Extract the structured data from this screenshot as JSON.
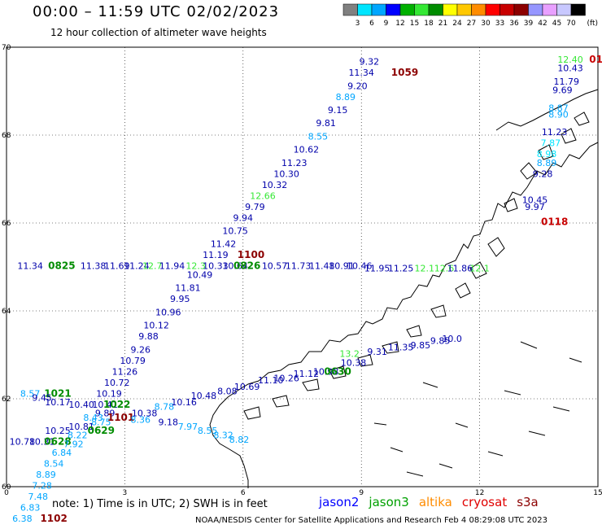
{
  "title": "00:00 – 11:59 UTC 02/02/2023",
  "subtitle": "12 hour collection of altimeter wave heights",
  "legend": {
    "colors": [
      "#808080",
      "#00e5ff",
      "#00a6ff",
      "#0000ff",
      "#00b000",
      "#34e834",
      "#008c00",
      "#ffff00",
      "#ffc800",
      "#ff8c00",
      "#ff0000",
      "#c80000",
      "#8c0000",
      "#9696ff",
      "#e8a0ff",
      "#c8c8ff",
      "#000000"
    ],
    "labels": [
      "3",
      "6",
      "9",
      "12",
      "15",
      "18",
      "21",
      "24",
      "27",
      "30",
      "33",
      "36",
      "39",
      "42",
      "45",
      "70"
    ],
    "unit": "(ft)"
  },
  "chart_data": {
    "type": "scatter",
    "xlim": [
      0,
      15
    ],
    "ylim": [
      60,
      70
    ],
    "xticks": [
      "0",
      "3",
      "6",
      "9",
      "12",
      "15"
    ],
    "yticks": [
      "60",
      "62",
      "64",
      "66",
      "68",
      "70"
    ],
    "grid": true,
    "points": [
      {
        "x": 9.2,
        "y": 69.6,
        "v": "9.32",
        "c": "#0000aa"
      },
      {
        "x": 9.0,
        "y": 69.35,
        "v": "11.34",
        "c": "#0000aa"
      },
      {
        "x": 10.1,
        "y": 69.35,
        "v": "1059",
        "c": "#8c0000",
        "bold": true
      },
      {
        "x": 8.9,
        "y": 69.05,
        "v": "9.20",
        "c": "#0000aa"
      },
      {
        "x": 8.6,
        "y": 68.8,
        "v": "8.89",
        "c": "#00a6ff"
      },
      {
        "x": 8.4,
        "y": 68.5,
        "v": "9.15",
        "c": "#0000aa"
      },
      {
        "x": 8.1,
        "y": 68.2,
        "v": "9.81",
        "c": "#0000aa"
      },
      {
        "x": 7.9,
        "y": 67.9,
        "v": "8.55",
        "c": "#00a6ff"
      },
      {
        "x": 7.6,
        "y": 67.6,
        "v": "10.62",
        "c": "#0000aa"
      },
      {
        "x": 7.3,
        "y": 67.3,
        "v": "11.23",
        "c": "#0000aa"
      },
      {
        "x": 7.1,
        "y": 67.05,
        "v": "10.30",
        "c": "#0000aa"
      },
      {
        "x": 6.8,
        "y": 66.8,
        "v": "10.32",
        "c": "#0000aa"
      },
      {
        "x": 6.5,
        "y": 66.55,
        "v": "12.66",
        "c": "#34e834"
      },
      {
        "x": 6.3,
        "y": 66.3,
        "v": "9.79",
        "c": "#0000aa"
      },
      {
        "x": 6.0,
        "y": 66.05,
        "v": "9.94",
        "c": "#0000aa"
      },
      {
        "x": 5.8,
        "y": 65.75,
        "v": "10.75",
        "c": "#0000aa"
      },
      {
        "x": 5.5,
        "y": 65.45,
        "v": "11.42",
        "c": "#0000aa"
      },
      {
        "x": 5.3,
        "y": 65.2,
        "v": "11.19",
        "c": "#0000aa"
      },
      {
        "x": 6.2,
        "y": 65.2,
        "v": "1100",
        "c": "#8c0000",
        "bold": true
      },
      {
        "x": 0.6,
        "y": 64.95,
        "v": "11.34",
        "c": "#0000aa"
      },
      {
        "x": 1.4,
        "y": 64.95,
        "v": "0825",
        "c": "#008c00",
        "bold": true
      },
      {
        "x": 2.2,
        "y": 64.95,
        "v": "11.38",
        "c": "#0000aa"
      },
      {
        "x": 2.8,
        "y": 64.95,
        "v": "11.69",
        "c": "#0000aa"
      },
      {
        "x": 3.3,
        "y": 64.95,
        "v": "11.24",
        "c": "#0000aa"
      },
      {
        "x": 3.7,
        "y": 64.95,
        "v": "12.7",
        "c": "#34e834"
      },
      {
        "x": 4.2,
        "y": 64.95,
        "v": "11.94",
        "c": "#0000aa"
      },
      {
        "x": 4.8,
        "y": 64.95,
        "v": "12.3",
        "c": "#34e834"
      },
      {
        "x": 5.3,
        "y": 64.95,
        "v": "10.33",
        "c": "#0000aa"
      },
      {
        "x": 5.8,
        "y": 64.95,
        "v": "10.64",
        "c": "#0000aa"
      },
      {
        "x": 6.1,
        "y": 64.95,
        "v": "0826",
        "c": "#008c00",
        "bold": true
      },
      {
        "x": 6.8,
        "y": 64.95,
        "v": "10.57",
        "c": "#0000aa"
      },
      {
        "x": 7.4,
        "y": 64.95,
        "v": "11.73",
        "c": "#0000aa"
      },
      {
        "x": 8.0,
        "y": 64.95,
        "v": "11.48",
        "c": "#0000aa"
      },
      {
        "x": 8.5,
        "y": 64.95,
        "v": "10.91",
        "c": "#0000aa"
      },
      {
        "x": 8.95,
        "y": 64.95,
        "v": "10.46",
        "c": "#0000aa"
      },
      {
        "x": 9.4,
        "y": 64.9,
        "v": "11.95",
        "c": "#0000aa"
      },
      {
        "x": 10.0,
        "y": 64.9,
        "v": "11.25",
        "c": "#0000aa"
      },
      {
        "x": 10.6,
        "y": 64.9,
        "v": "12.1",
        "c": "#34e834"
      },
      {
        "x": 11.1,
        "y": 64.9,
        "v": "12.6",
        "c": "#34e834"
      },
      {
        "x": 11.5,
        "y": 64.9,
        "v": "11.86",
        "c": "#0000aa"
      },
      {
        "x": 12.0,
        "y": 64.9,
        "v": "12.1",
        "c": "#34e834"
      },
      {
        "x": 4.9,
        "y": 64.75,
        "v": "10.49",
        "c": "#0000aa"
      },
      {
        "x": 4.6,
        "y": 64.45,
        "v": "11.81",
        "c": "#0000aa"
      },
      {
        "x": 4.4,
        "y": 64.2,
        "v": "9.95",
        "c": "#0000aa"
      },
      {
        "x": 4.1,
        "y": 63.9,
        "v": "10.96",
        "c": "#0000aa"
      },
      {
        "x": 3.8,
        "y": 63.6,
        "v": "10.12",
        "c": "#0000aa"
      },
      {
        "x": 3.6,
        "y": 63.35,
        "v": "9.88",
        "c": "#0000aa"
      },
      {
        "x": 3.4,
        "y": 63.05,
        "v": "9.26",
        "c": "#0000aa"
      },
      {
        "x": 3.2,
        "y": 62.8,
        "v": "10.79",
        "c": "#0000aa"
      },
      {
        "x": 3.0,
        "y": 62.55,
        "v": "11.26",
        "c": "#0000aa"
      },
      {
        "x": 2.8,
        "y": 62.3,
        "v": "10.72",
        "c": "#0000aa"
      },
      {
        "x": 2.6,
        "y": 62.05,
        "v": "10.19",
        "c": "#0000aa"
      },
      {
        "x": 0.6,
        "y": 62.05,
        "v": "8.57",
        "c": "#00a6ff"
      },
      {
        "x": 1.3,
        "y": 62.05,
        "v": "1021",
        "c": "#008c00",
        "bold": true
      },
      {
        "x": 0.9,
        "y": 61.95,
        "v": "9.45",
        "c": "#0000aa"
      },
      {
        "x": 1.3,
        "y": 61.85,
        "v": "10.17",
        "c": "#0000aa"
      },
      {
        "x": 1.9,
        "y": 61.8,
        "v": "10.40",
        "c": "#0000aa"
      },
      {
        "x": 2.5,
        "y": 61.8,
        "v": "10.41",
        "c": "#0000aa"
      },
      {
        "x": 2.8,
        "y": 61.8,
        "v": "1022",
        "c": "#008c00",
        "bold": true
      },
      {
        "x": 2.5,
        "y": 61.6,
        "v": "9.89",
        "c": "#0000aa"
      },
      {
        "x": 2.9,
        "y": 61.5,
        "v": "1101",
        "c": "#8c0000",
        "bold": true
      },
      {
        "x": 3.5,
        "y": 61.6,
        "v": "10.38",
        "c": "#0000aa"
      },
      {
        "x": 4.0,
        "y": 61.75,
        "v": "8.78",
        "c": "#00a6ff"
      },
      {
        "x": 4.5,
        "y": 61.85,
        "v": "10.16",
        "c": "#0000aa"
      },
      {
        "x": 5.0,
        "y": 62.0,
        "v": "10.48",
        "c": "#0000aa"
      },
      {
        "x": 5.6,
        "y": 62.1,
        "v": "8.08",
        "c": "#0000aa"
      },
      {
        "x": 6.1,
        "y": 62.2,
        "v": "10.69",
        "c": "#0000aa"
      },
      {
        "x": 6.7,
        "y": 62.35,
        "v": "11.10",
        "c": "#0000aa"
      },
      {
        "x": 7.1,
        "y": 62.4,
        "v": "10.26",
        "c": "#0000aa"
      },
      {
        "x": 7.6,
        "y": 62.5,
        "v": "11.12",
        "c": "#0000aa"
      },
      {
        "x": 8.1,
        "y": 62.55,
        "v": "10.98",
        "c": "#0000aa"
      },
      {
        "x": 8.4,
        "y": 62.55,
        "v": "0630",
        "c": "#008c00",
        "bold": true
      },
      {
        "x": 8.8,
        "y": 62.75,
        "v": "10.38",
        "c": "#0000aa"
      },
      {
        "x": 8.7,
        "y": 62.95,
        "v": "13.2",
        "c": "#34e834"
      },
      {
        "x": 9.4,
        "y": 63.0,
        "v": "9.31",
        "c": "#0000aa"
      },
      {
        "x": 10.0,
        "y": 63.1,
        "v": "11.35",
        "c": "#0000aa"
      },
      {
        "x": 10.5,
        "y": 63.15,
        "v": "9.85",
        "c": "#0000aa"
      },
      {
        "x": 11.0,
        "y": 63.25,
        "v": "9.85",
        "c": "#0000aa"
      },
      {
        "x": 11.3,
        "y": 63.3,
        "v": "10.0",
        "c": "#0000aa"
      },
      {
        "x": 2.2,
        "y": 61.5,
        "v": "8.43",
        "c": "#00a6ff"
      },
      {
        "x": 2.4,
        "y": 61.4,
        "v": "8.75",
        "c": "#00a6ff"
      },
      {
        "x": 3.4,
        "y": 61.45,
        "v": "8.36",
        "c": "#00a6ff"
      },
      {
        "x": 4.1,
        "y": 61.4,
        "v": "9.18",
        "c": "#0000aa"
      },
      {
        "x": 4.6,
        "y": 61.3,
        "v": "7.97",
        "c": "#00a6ff"
      },
      {
        "x": 5.1,
        "y": 61.2,
        "v": "8.55",
        "c": "#00a6ff"
      },
      {
        "x": 5.5,
        "y": 61.1,
        "v": "8.32",
        "c": "#00a6ff"
      },
      {
        "x": 5.9,
        "y": 61.0,
        "v": "8.82",
        "c": "#00a6ff"
      },
      {
        "x": 1.9,
        "y": 61.3,
        "v": "10.81",
        "c": "#0000aa"
      },
      {
        "x": 2.4,
        "y": 61.2,
        "v": "0629",
        "c": "#008c00",
        "bold": true
      },
      {
        "x": 1.3,
        "y": 61.2,
        "v": "10.25",
        "c": "#0000aa"
      },
      {
        "x": 1.8,
        "y": 61.1,
        "v": "8.22",
        "c": "#00a6ff"
      },
      {
        "x": 0.4,
        "y": 60.95,
        "v": "10.78",
        "c": "#0000aa"
      },
      {
        "x": 0.9,
        "y": 60.95,
        "v": "10.31",
        "c": "#0000aa"
      },
      {
        "x": 1.3,
        "y": 60.95,
        "v": "0628",
        "c": "#008c00",
        "bold": true
      },
      {
        "x": 1.7,
        "y": 60.9,
        "v": "7.92",
        "c": "#00a6ff"
      },
      {
        "x": 1.4,
        "y": 60.7,
        "v": "6.84",
        "c": "#00a6ff"
      },
      {
        "x": 1.2,
        "y": 60.45,
        "v": "8.54",
        "c": "#00a6ff"
      },
      {
        "x": 1.0,
        "y": 60.2,
        "v": "8.89",
        "c": "#00a6ff"
      },
      {
        "x": 0.9,
        "y": 59.95,
        "v": "7.28",
        "c": "#00a6ff"
      },
      {
        "x": 0.8,
        "y": 59.7,
        "v": "7.48",
        "c": "#00a6ff"
      },
      {
        "x": 0.6,
        "y": 59.45,
        "v": "6.83",
        "c": "#00a6ff"
      },
      {
        "x": 0.4,
        "y": 59.2,
        "v": "6.38",
        "c": "#00a6ff"
      },
      {
        "x": 1.2,
        "y": 59.2,
        "v": "1102",
        "c": "#8c0000",
        "bold": true
      },
      {
        "x": 14.3,
        "y": 69.65,
        "v": "12.40",
        "c": "#34e834"
      },
      {
        "x": 14.95,
        "y": 69.65,
        "v": "01",
        "c": "#c80000",
        "bold": true
      },
      {
        "x": 14.3,
        "y": 69.45,
        "v": "10.43",
        "c": "#0000aa"
      },
      {
        "x": 14.2,
        "y": 69.15,
        "v": "11.79",
        "c": "#0000aa"
      },
      {
        "x": 14.1,
        "y": 68.95,
        "v": "9.69",
        "c": "#0000aa"
      },
      {
        "x": 14.0,
        "y": 68.55,
        "v": "8.87",
        "c": "#00a6ff"
      },
      {
        "x": 14.0,
        "y": 68.4,
        "v": "8.90",
        "c": "#00a6ff"
      },
      {
        "x": 13.9,
        "y": 68.0,
        "v": "11.23",
        "c": "#0000aa"
      },
      {
        "x": 13.8,
        "y": 67.75,
        "v": "7.87",
        "c": "#00e5ff"
      },
      {
        "x": 13.7,
        "y": 67.5,
        "v": "8.98",
        "c": "#00e5ff"
      },
      {
        "x": 13.7,
        "y": 67.3,
        "v": "8.89",
        "c": "#00a6ff"
      },
      {
        "x": 13.6,
        "y": 67.05,
        "v": "9.28",
        "c": "#0000aa"
      },
      {
        "x": 13.4,
        "y": 66.45,
        "v": "10.45",
        "c": "#0000aa"
      },
      {
        "x": 13.4,
        "y": 66.3,
        "v": "9.97",
        "c": "#0000aa"
      },
      {
        "x": 13.9,
        "y": 65.95,
        "v": "0118",
        "c": "#c80000",
        "bold": true
      }
    ],
    "xlabel": "",
    "ylabel": ""
  },
  "note": "note: 1) Time is in UTC; 2) SWH is in feet",
  "satellites": [
    {
      "name": "jason2",
      "color": "#0000ff"
    },
    {
      "name": "jason3",
      "color": "#00a000"
    },
    {
      "name": "altika",
      "color": "#ff8c00"
    },
    {
      "name": "cryosat",
      "color": "#e00000"
    },
    {
      "name": "s3a",
      "color": "#8c0000"
    }
  ],
  "credit": "NOAA/NESDIS Center for Satellite Applications and Research   Feb  4 08:29:08 UTC 2023"
}
